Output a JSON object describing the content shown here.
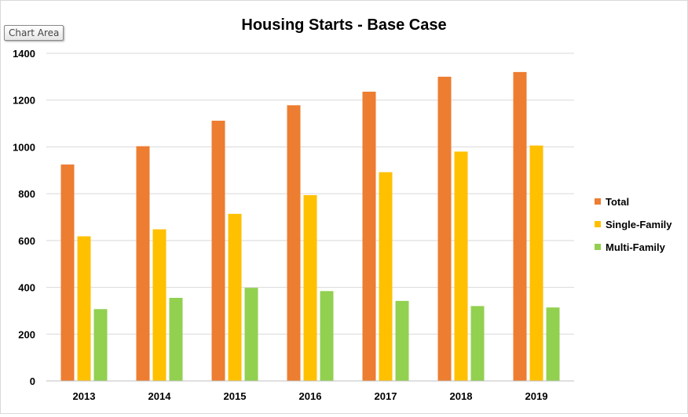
{
  "tooltip": {
    "label": "Chart Area"
  },
  "chart_data": {
    "type": "bar",
    "title": "Housing Starts - Base Case",
    "xlabel": "",
    "ylabel": "",
    "categories": [
      "2013",
      "2014",
      "2015",
      "2016",
      "2017",
      "2018",
      "2019"
    ],
    "ylim": [
      0,
      1400
    ],
    "yticks": [
      0,
      200,
      400,
      600,
      800,
      1000,
      1200,
      1400
    ],
    "grid": true,
    "legend_position": "right",
    "series": [
      {
        "name": "Total",
        "color": "#ED7D31",
        "values": [
          925,
          1003,
          1112,
          1178,
          1236,
          1300,
          1320
        ]
      },
      {
        "name": "Single-Family",
        "color": "#FFC000",
        "values": [
          618,
          648,
          714,
          794,
          892,
          980,
          1006
        ]
      },
      {
        "name": "Multi-Family",
        "color": "#92D050",
        "values": [
          307,
          355,
          398,
          384,
          342,
          320,
          314
        ]
      }
    ]
  }
}
